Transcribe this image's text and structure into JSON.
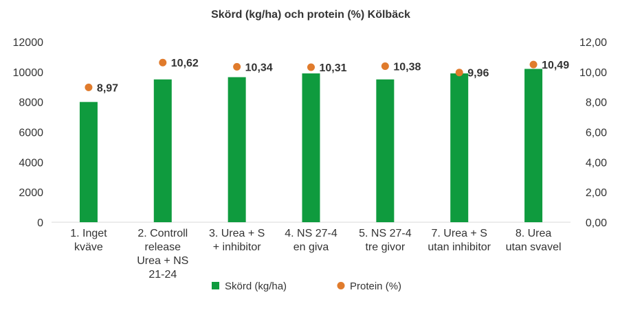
{
  "chart_data": {
    "type": "bar",
    "title": "Skörd (kg/ha) och protein (%) Kölbäck",
    "categories": [
      [
        "1. Inget",
        "kväve"
      ],
      [
        "2. Controll",
        "release",
        "Urea + NS",
        "21-24"
      ],
      [
        "3. Urea + S",
        "+ inhibitor"
      ],
      [
        "4. NS 27-4",
        "en giva"
      ],
      [
        "5. NS 27-4",
        "tre givor"
      ],
      [
        "7. Urea + S",
        "utan inhibitor"
      ],
      [
        "8. Urea",
        "utan svavel"
      ]
    ],
    "series": [
      {
        "name": "Skörd (kg/ha)",
        "type": "bar",
        "axis": "left",
        "color": "#0f9b3e",
        "values": [
          8000,
          9500,
          9650,
          9900,
          9500,
          9900,
          10200
        ]
      },
      {
        "name": "Protein (%)",
        "type": "scatter",
        "axis": "right",
        "color": "#e07b2c",
        "values": [
          8.97,
          10.62,
          10.34,
          10.31,
          10.38,
          9.96,
          10.49
        ],
        "labels": [
          "8,97",
          "10,62",
          "10,34",
          "10,31",
          "10,38",
          "9,96",
          "10,49"
        ]
      }
    ],
    "y_left": {
      "min": 0,
      "max": 12000,
      "step": 2000,
      "ticks": [
        "0",
        "2000",
        "4000",
        "6000",
        "8000",
        "10000",
        "12000"
      ]
    },
    "y_right": {
      "min": 0,
      "max": 12,
      "step": 2,
      "ticks": [
        "0,00",
        "2,00",
        "4,00",
        "6,00",
        "8,00",
        "10,00",
        "12,00"
      ]
    },
    "grid": false,
    "legend_position": "bottom"
  }
}
